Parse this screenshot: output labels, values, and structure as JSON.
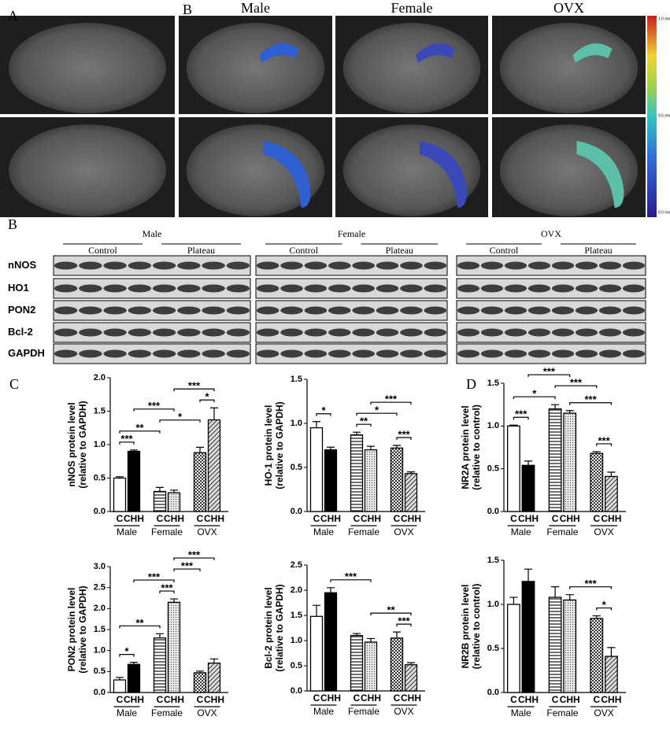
{
  "panel_labels": [
    "A",
    "B",
    "B",
    "C",
    "D"
  ],
  "mri": {
    "columns": [
      "Male",
      "Female",
      "OVX"
    ],
    "colorbar": [
      "1.0 min⁻¹",
      "0.5 min⁻¹",
      "0.0 min⁻¹"
    ]
  },
  "blot": {
    "groups": [
      "Male",
      "Female",
      "OVX"
    ],
    "conditions": [
      "Control",
      "Plateau"
    ],
    "proteins": [
      "nNOS",
      "HO1",
      "PON2",
      "Bcl-2",
      "GAPDH"
    ]
  },
  "chart_data": [
    {
      "type": "bar",
      "ylabel": [
        "nNOS protein level",
        "(relative to GAPDH)"
      ],
      "categories": [
        "C",
        "CHH",
        "C",
        "CHH",
        "C",
        "CHH"
      ],
      "groups": [
        "Male",
        "Female",
        "OVX"
      ],
      "values": [
        0.5,
        0.9,
        0.3,
        0.28,
        0.88,
        1.37
      ],
      "errors": [
        0.02,
        0.02,
        0.06,
        0.04,
        0.08,
        0.18
      ],
      "patterns": [
        "white",
        "black",
        "stripes",
        "dots",
        "checker",
        "hatch"
      ],
      "ylim": [
        0,
        2
      ],
      "yticks": [
        {
          "value": 0,
          "label": "0.0"
        },
        {
          "value": 0.5,
          "label": "0.5"
        },
        {
          "value": 1,
          "label": "1.0"
        },
        {
          "value": 1.5,
          "label": "1.5"
        },
        {
          "value": 2,
          "label": "2.0"
        }
      ],
      "annotations": [
        {
          "label": "***",
          "bars": [
            0,
            1
          ]
        },
        {
          "label": "**",
          "bars": [
            0,
            2
          ]
        },
        {
          "label": "*",
          "bars": [
            2,
            4
          ]
        },
        {
          "label": "***",
          "bars": [
            1,
            3
          ]
        },
        {
          "label": "*",
          "bars": [
            4,
            5
          ]
        },
        {
          "label": "***",
          "bars": [
            3,
            5
          ]
        }
      ]
    },
    {
      "type": "bar",
      "ylabel": [
        "HO-1 protein level",
        "(relative to GAPDH)"
      ],
      "categories": [
        "C",
        "CHH",
        "C",
        "CHH",
        "C",
        "CHH"
      ],
      "groups": [
        "Male",
        "Female",
        "OVX"
      ],
      "values": [
        0.95,
        0.7,
        0.87,
        0.7,
        0.72,
        0.43
      ],
      "errors": [
        0.07,
        0.03,
        0.03,
        0.04,
        0.03,
        0.02
      ],
      "patterns": [
        "white",
        "black",
        "stripes",
        "dots",
        "checker",
        "hatch"
      ],
      "ylim": [
        0,
        1.5
      ],
      "yticks": [
        {
          "value": 0,
          "label": "0.0"
        },
        {
          "value": 0.5,
          "label": "0.5"
        },
        {
          "value": 1,
          "label": "1.0"
        },
        {
          "value": 1.5,
          "label": "1.5"
        }
      ],
      "annotations": [
        {
          "label": "*",
          "bars": [
            0,
            1
          ]
        },
        {
          "label": "**",
          "bars": [
            2,
            3
          ]
        },
        {
          "label": "***",
          "bars": [
            4,
            5
          ]
        },
        {
          "label": "*",
          "bars": [
            2,
            4
          ]
        },
        {
          "label": "***",
          "bars": [
            3,
            5
          ]
        }
      ]
    },
    {
      "type": "bar",
      "ylabel": [
        "NR2A protein level",
        "(relative to control)"
      ],
      "categories": [
        "C",
        "CHH",
        "C",
        "CHH",
        "C",
        "CHH"
      ],
      "groups": [
        "Male",
        "Female",
        "OVX"
      ],
      "values": [
        1.0,
        0.54,
        1.2,
        1.15,
        0.68,
        0.41
      ],
      "errors": [
        0.01,
        0.05,
        0.05,
        0.03,
        0.02,
        0.05
      ],
      "patterns": [
        "white",
        "black",
        "stripes",
        "dots",
        "checker",
        "hatch"
      ],
      "ylim": [
        0,
        1.5
      ],
      "yticks": [
        {
          "value": 0,
          "label": "0.0"
        },
        {
          "value": 0.5,
          "label": "0.5"
        },
        {
          "value": 1,
          "label": "1.0"
        },
        {
          "value": 1.5,
          "label": "1.5"
        }
      ],
      "annotations": [
        {
          "label": "***",
          "bars": [
            0,
            1
          ]
        },
        {
          "label": "***",
          "bars": [
            4,
            5
          ]
        },
        {
          "label": "***",
          "bars": [
            3,
            5
          ]
        },
        {
          "label": "*",
          "bars": [
            0,
            2
          ]
        },
        {
          "label": "***",
          "bars": [
            2,
            4
          ]
        },
        {
          "label": "***",
          "bars": [
            1,
            3
          ]
        }
      ]
    },
    {
      "type": "bar",
      "ylabel": [
        "PON2 protein level",
        "(relative to GAPDH)"
      ],
      "categories": [
        "C",
        "CHH",
        "C",
        "CHH",
        "C",
        "CHH"
      ],
      "groups": [
        "Male",
        "Female",
        "OVX"
      ],
      "values": [
        0.3,
        0.67,
        1.3,
        2.15,
        0.47,
        0.7
      ],
      "errors": [
        0.06,
        0.05,
        0.1,
        0.08,
        0.04,
        0.1
      ],
      "patterns": [
        "white",
        "black",
        "stripes",
        "dots",
        "checker",
        "hatch"
      ],
      "ylim": [
        0,
        3
      ],
      "yticks": [
        {
          "value": 0,
          "label": "0.0"
        },
        {
          "value": 0.5,
          "label": "0.5"
        },
        {
          "value": 1,
          "label": "1.0"
        },
        {
          "value": 1.5,
          "label": "1.5"
        },
        {
          "value": 2,
          "label": "2.0"
        },
        {
          "value": 2.5,
          "label": "2.5"
        },
        {
          "value": 3,
          "label": "3.0"
        }
      ],
      "annotations": [
        {
          "label": "*",
          "bars": [
            0,
            1
          ]
        },
        {
          "label": "**",
          "bars": [
            0,
            2
          ]
        },
        {
          "label": "***",
          "bars": [
            2,
            3
          ]
        },
        {
          "label": "***",
          "bars": [
            1,
            3
          ]
        },
        {
          "label": "***",
          "bars": [
            3,
            4
          ]
        },
        {
          "label": "***",
          "bars": [
            3,
            5
          ]
        }
      ]
    },
    {
      "type": "bar",
      "ylabel": [
        "Bcl-2 protein level",
        "(relative to GAPDH)"
      ],
      "categories": [
        "C",
        "CHH",
        "C",
        "CHH",
        "C",
        "CHH"
      ],
      "groups": [
        "Male",
        "Female",
        "OVX"
      ],
      "values": [
        1.48,
        1.95,
        1.1,
        0.97,
        1.05,
        0.52
      ],
      "errors": [
        0.22,
        0.1,
        0.04,
        0.07,
        0.12,
        0.04
      ],
      "patterns": [
        "white",
        "black",
        "stripes",
        "dots",
        "checker",
        "hatch"
      ],
      "ylim": [
        0,
        2.5
      ],
      "yticks": [
        {
          "value": 0,
          "label": "0.0"
        },
        {
          "value": 0.5,
          "label": "0.5"
        },
        {
          "value": 1,
          "label": "1.0"
        },
        {
          "value": 1.5,
          "label": "1.5"
        },
        {
          "value": 2,
          "label": "2.0"
        },
        {
          "value": 2.5,
          "label": "2.5"
        }
      ],
      "annotations": [
        {
          "label": "***",
          "bars": [
            4,
            5
          ]
        },
        {
          "label": "**",
          "bars": [
            3,
            5
          ]
        },
        {
          "label": "***",
          "bars": [
            1,
            3
          ]
        }
      ]
    },
    {
      "type": "bar",
      "ylabel": [
        "NR2B protein level",
        "(relative to control)"
      ],
      "categories": [
        "C",
        "CHH",
        "C",
        "CHH",
        "C",
        "CHH"
      ],
      "groups": [
        "Male",
        "Female",
        "OVX"
      ],
      "values": [
        1.0,
        1.26,
        1.08,
        1.05,
        0.84,
        0.41
      ],
      "errors": [
        0.08,
        0.14,
        0.12,
        0.06,
        0.03,
        0.1
      ],
      "patterns": [
        "white",
        "black",
        "stripes",
        "dots",
        "checker",
        "hatch"
      ],
      "ylim": [
        0,
        1.5
      ],
      "yticks": [
        {
          "value": 0,
          "label": "0.0"
        },
        {
          "value": 0.5,
          "label": "0.5"
        },
        {
          "value": 1,
          "label": "1.0"
        },
        {
          "value": 1.5,
          "label": "1.5"
        }
      ],
      "annotations": [
        {
          "label": "*",
          "bars": [
            4,
            5
          ]
        },
        {
          "label": "***",
          "bars": [
            3,
            5
          ]
        }
      ]
    }
  ]
}
